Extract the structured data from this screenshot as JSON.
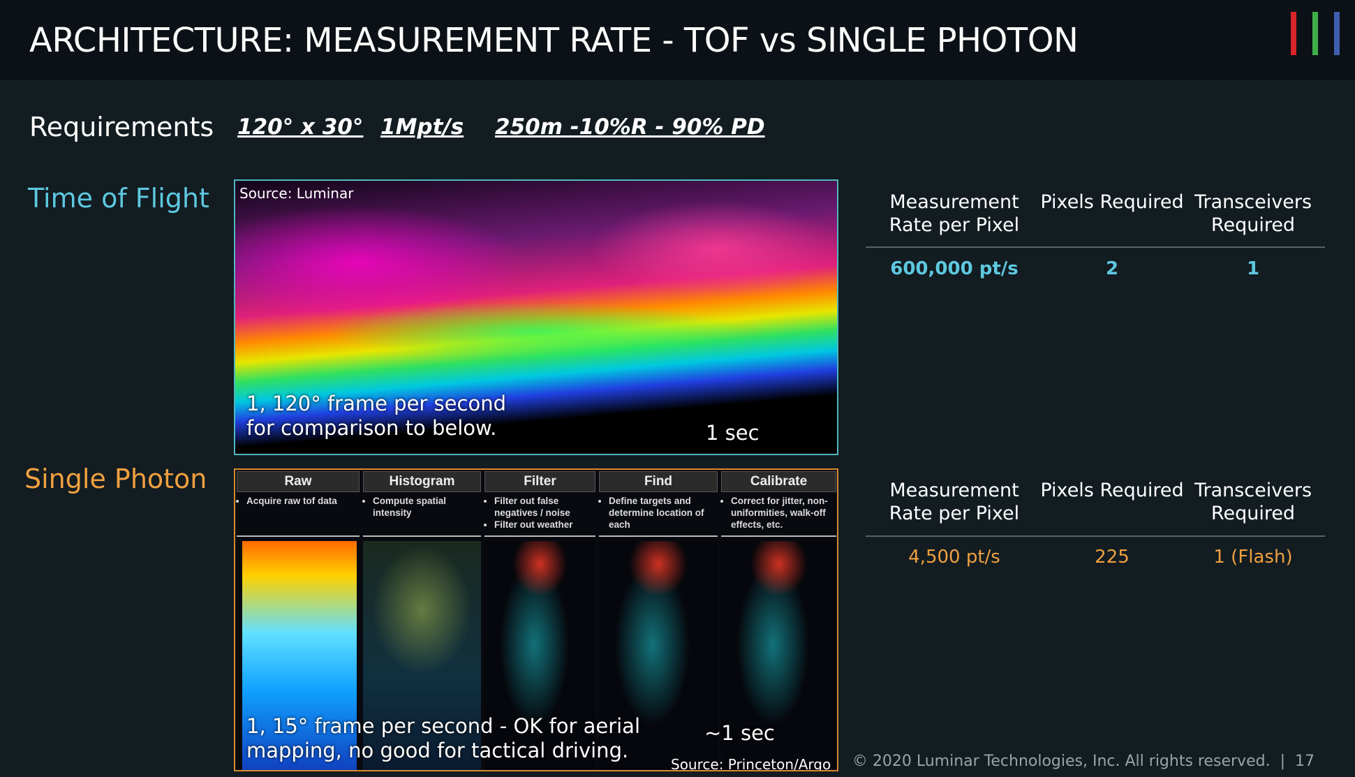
{
  "header": {
    "title": "ARCHITECTURE: MEASUREMENT RATE - TOF vs SINGLE PHOTON"
  },
  "requirements": {
    "label": "Requirements",
    "items": [
      "120° x 30°",
      "1Mpt/s",
      "250m -10%R - 90% PD"
    ]
  },
  "time_of_flight": {
    "label": "Time of Flight",
    "image": {
      "source": "Source: Luminar",
      "caption": [
        "1, 120° frame per second",
        "for comparison to below."
      ],
      "time": "1 sec"
    },
    "table": {
      "headers": [
        "Measurement Rate per Pixel",
        "Pixels Required",
        "Transceivers Required"
      ],
      "row": [
        "600,000 pt/s",
        "2",
        "1"
      ]
    }
  },
  "single_photon": {
    "label": "Single Photon",
    "image": {
      "steps": [
        {
          "title": "Raw",
          "bullets": [
            "Acquire raw tof data"
          ]
        },
        {
          "title": "Histogram",
          "bullets": [
            "Compute spatial intensity"
          ]
        },
        {
          "title": "Filter",
          "bullets": [
            "Filter out false negatives / noise",
            "Filter out weather"
          ]
        },
        {
          "title": "Find",
          "bullets": [
            "Define targets and determine location of each"
          ]
        },
        {
          "title": "Calibrate",
          "bullets": [
            "Correct for jitter, non-uniformities, walk-off effects, etc."
          ]
        }
      ],
      "caption": [
        "1, 15° frame per second - OK for aerial",
        "mapping, no good for tactical driving."
      ],
      "time": "~1 sec",
      "source": "Source: Princeton/Argo"
    },
    "table": {
      "headers": [
        "Measurement Rate per Pixel",
        "Pixels Required",
        "Transceivers Required"
      ],
      "row": [
        "4,500 pt/s",
        "225",
        "1 (Flash)"
      ]
    }
  },
  "footer": {
    "copyright": "© 2020 Luminar Technologies, Inc. All rights reserved.",
    "separator": "|",
    "page": "17"
  }
}
